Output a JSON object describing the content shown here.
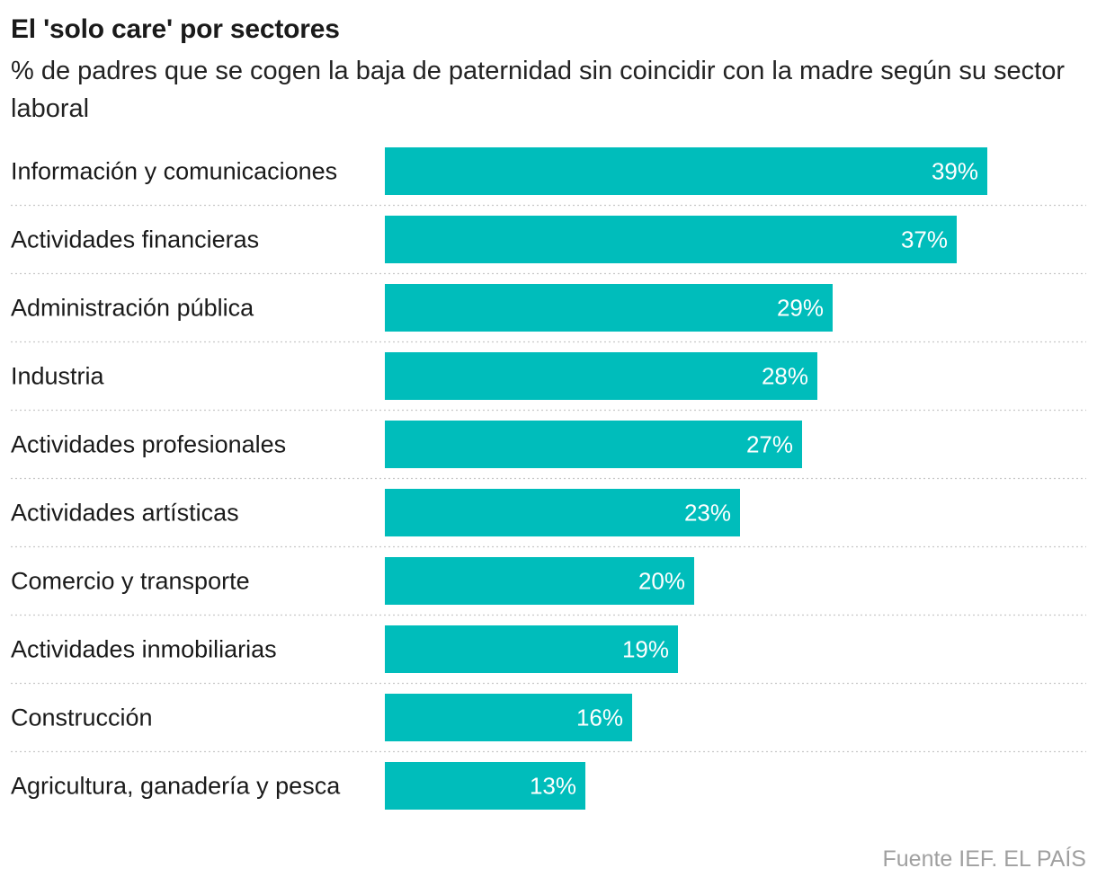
{
  "header": {
    "title": "El 'solo care' por sectores",
    "subtitle": "% de padres que se cogen la baja de paternidad sin coincidir con la madre según su sector laboral"
  },
  "footer": {
    "source": "Fuente IEF. EL PAÍS"
  },
  "colors": {
    "bar": "#00bdbb",
    "bar_label": "#ffffff",
    "category_label": "#1a1a1a",
    "separator": "#c8c8c8"
  },
  "chart_data": {
    "type": "bar",
    "orientation": "horizontal",
    "title": "El 'solo care' por sectores",
    "subtitle": "% de padres que se cogen la baja de paternidad sin coincidir con la madre según su sector laboral",
    "categories": [
      "Información y comunicaciones",
      "Actividades financieras",
      "Administración pública",
      "Industria",
      "Actividades profesionales",
      "Actividades artísticas",
      "Comercio y transporte",
      "Actividades inmobiliarias",
      "Construcción",
      "Agricultura, ganadería y pesca"
    ],
    "values": [
      39,
      37,
      29,
      28,
      27,
      23,
      20,
      19,
      16,
      13
    ],
    "value_labels": [
      "39%",
      "37%",
      "29%",
      "28%",
      "27%",
      "23%",
      "20%",
      "19%",
      "16%",
      "13%"
    ],
    "unit": "%",
    "xlim": [
      0,
      39
    ],
    "grid": false,
    "legend": "none"
  }
}
